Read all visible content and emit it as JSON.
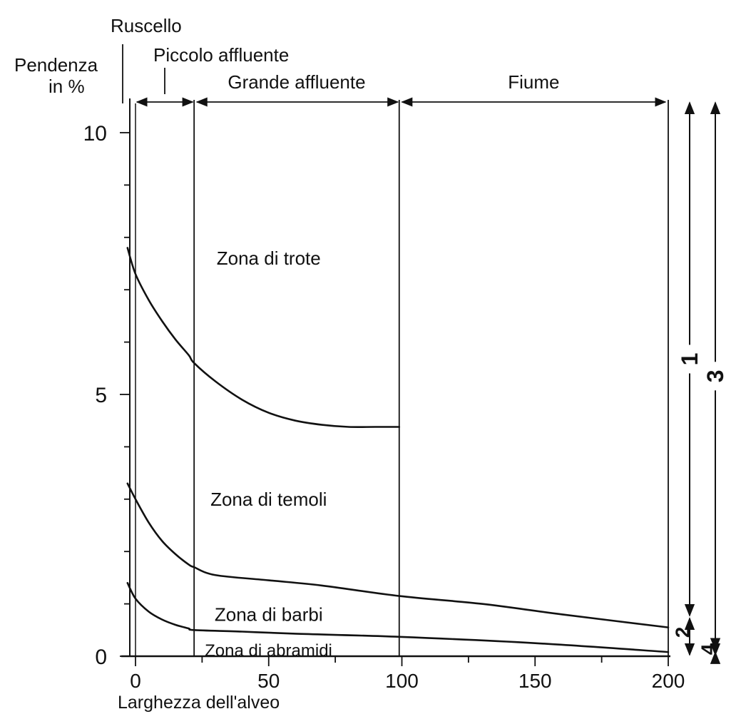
{
  "chart_data": {
    "type": "line",
    "ylabel_line1": "Pendenza",
    "ylabel_line2": "in %",
    "xlabel": "Larghezza dell'alveo",
    "xlim": [
      -5,
      205
    ],
    "ylim": [
      0,
      10.6
    ],
    "x_ticks": [
      "0",
      "50",
      "100",
      "150",
      "200"
    ],
    "x_tick_values": [
      0,
      50,
      100,
      150,
      200
    ],
    "y_ticks": [
      "0",
      "5",
      "10"
    ],
    "y_tick_values": [
      0,
      5,
      10
    ],
    "stream_categories": {
      "ruscello": "Ruscello",
      "piccolo_affluente": "Piccolo affluente",
      "grande_affluente": "Grande affluente",
      "fiume": "Fiume",
      "boundaries": [
        -2,
        0,
        22,
        99,
        200
      ]
    },
    "zones": [
      {
        "label": "Zona di trote",
        "x": 50,
        "y": 7.6
      },
      {
        "label": "Zona di temoli",
        "x": 50,
        "y": 3.0
      },
      {
        "label": "Zona di barbi",
        "x": 50,
        "y": 0.8
      },
      {
        "label": "Zona di abramidi",
        "x": 26,
        "y": 0.12
      }
    ],
    "series": [
      {
        "x": [
          -3,
          0,
          5,
          10,
          15,
          20,
          22,
          30,
          40,
          50,
          60,
          70,
          80,
          90,
          99
        ],
        "values": [
          7.8,
          7.3,
          6.8,
          6.4,
          6.05,
          5.75,
          5.6,
          5.25,
          4.9,
          4.65,
          4.5,
          4.42,
          4.38,
          4.38,
          4.38
        ]
      },
      {
        "x": [
          -3,
          0,
          5,
          10,
          15,
          20,
          22,
          30,
          50,
          70,
          99,
          130,
          160,
          200
        ],
        "values": [
          3.3,
          3.0,
          2.55,
          2.2,
          1.95,
          1.75,
          1.7,
          1.55,
          1.45,
          1.35,
          1.15,
          1.0,
          0.8,
          0.55
        ]
      },
      {
        "x": [
          -3,
          0,
          5,
          10,
          15,
          20,
          22,
          40,
          60,
          99,
          150,
          200
        ],
        "values": [
          1.4,
          1.1,
          0.85,
          0.7,
          0.6,
          0.53,
          0.5,
          0.47,
          0.43,
          0.37,
          0.25,
          0.08
        ]
      }
    ],
    "range_markers": [
      {
        "label": "1",
        "y_from": 0.75,
        "y_to": 10.6
      },
      {
        "label": "2",
        "y_from": 0.0,
        "y_to": 0.75
      },
      {
        "label": "3",
        "y_from": 0.1,
        "y_to": 10.6
      },
      {
        "label": "4",
        "y_from": 0.0,
        "y_to": 0.1
      }
    ],
    "grid": false,
    "colors": {
      "line": "#111111",
      "background": "#ffffff"
    }
  }
}
